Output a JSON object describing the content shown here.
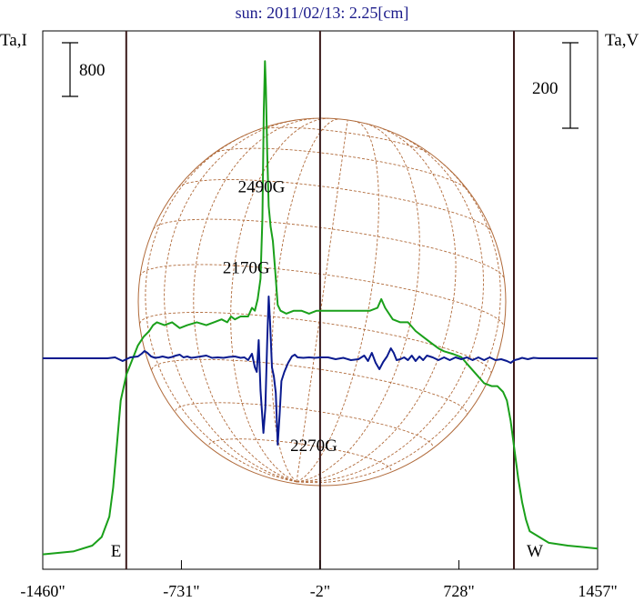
{
  "chart_data": {
    "type": "line",
    "title": "sun: 2011/02/13: 2.25[cm]",
    "ylabel_left": "Ta,I",
    "ylabel_right": "Ta,V",
    "scale_bar_left": "800",
    "scale_bar_right": "200",
    "xlim": [
      -1460,
      1457
    ],
    "x_ticks": [
      {
        "value": -1460,
        "label": "-1460\""
      },
      {
        "value": -731,
        "label": "-731\""
      },
      {
        "value": -2,
        "label": "-2\""
      },
      {
        "value": 728,
        "label": "728\""
      },
      {
        "value": 1457,
        "label": "1457\""
      }
    ],
    "limb_markers": [
      {
        "value": -1021,
        "label": "E"
      },
      {
        "value": 1017,
        "label": "W"
      }
    ],
    "center_line": -2,
    "annotations": [
      {
        "text": "2490G",
        "x": -310,
        "y_level": 0.3
      },
      {
        "text": "2170G",
        "x": -390,
        "y_level": 0.45
      },
      {
        "text": "2270G",
        "x": -35,
        "y_level": 0.78
      }
    ],
    "grid": "heliographic-coordinate grid",
    "colors": {
      "stokes_i": "#1aa01a",
      "stokes_v": "#0a1a8f",
      "disk": "#b06a3a",
      "vlines": "#3a1a1a"
    },
    "series": [
      {
        "key": "stokes_i",
        "points": [
          [
            -1460,
            0.02
          ],
          [
            -1300,
            0.03
          ],
          [
            -1200,
            0.05
          ],
          [
            -1150,
            0.08
          ],
          [
            -1110,
            0.15
          ],
          [
            -1090,
            0.25
          ],
          [
            -1070,
            0.4
          ],
          [
            -1050,
            0.55
          ],
          [
            -1020,
            0.64
          ],
          [
            -990,
            0.69
          ],
          [
            -960,
            0.74
          ],
          [
            -930,
            0.77
          ],
          [
            -900,
            0.79
          ],
          [
            -880,
            0.81
          ],
          [
            -860,
            0.82
          ],
          [
            -820,
            0.81
          ],
          [
            -780,
            0.82
          ],
          [
            -740,
            0.8
          ],
          [
            -700,
            0.81
          ],
          [
            -650,
            0.82
          ],
          [
            -600,
            0.81
          ],
          [
            -560,
            0.82
          ],
          [
            -520,
            0.83
          ],
          [
            -490,
            0.82
          ],
          [
            -470,
            0.84
          ],
          [
            -450,
            0.83
          ],
          [
            -420,
            0.84
          ],
          [
            -380,
            0.84
          ],
          [
            -360,
            0.87
          ],
          [
            -345,
            0.86
          ],
          [
            -330,
            0.9
          ],
          [
            -315,
            0.97
          ],
          [
            -305,
            1.18
          ],
          [
            -298,
            1.55
          ],
          [
            -292,
            1.72
          ],
          [
            -287,
            1.63
          ],
          [
            -280,
            1.4
          ],
          [
            -272,
            1.22
          ],
          [
            -262,
            1.15
          ],
          [
            -250,
            1.1
          ],
          [
            -238,
            1.0
          ],
          [
            -225,
            0.88
          ],
          [
            -210,
            0.86
          ],
          [
            -180,
            0.85
          ],
          [
            -140,
            0.86
          ],
          [
            -100,
            0.86
          ],
          [
            -60,
            0.85
          ],
          [
            -20,
            0.86
          ],
          [
            20,
            0.86
          ],
          [
            60,
            0.86
          ],
          [
            100,
            0.86
          ],
          [
            140,
            0.86
          ],
          [
            180,
            0.86
          ],
          [
            220,
            0.86
          ],
          [
            260,
            0.86
          ],
          [
            300,
            0.87
          ],
          [
            320,
            0.9
          ],
          [
            340,
            0.87
          ],
          [
            380,
            0.83
          ],
          [
            420,
            0.82
          ],
          [
            460,
            0.82
          ],
          [
            500,
            0.79
          ],
          [
            540,
            0.77
          ],
          [
            580,
            0.75
          ],
          [
            620,
            0.73
          ],
          [
            650,
            0.72
          ],
          [
            700,
            0.71
          ],
          [
            740,
            0.7
          ],
          [
            780,
            0.67
          ],
          [
            820,
            0.64
          ],
          [
            860,
            0.61
          ],
          [
            900,
            0.6
          ],
          [
            930,
            0.6
          ],
          [
            960,
            0.58
          ],
          [
            980,
            0.55
          ],
          [
            1000,
            0.48
          ],
          [
            1020,
            0.38
          ],
          [
            1040,
            0.28
          ],
          [
            1060,
            0.2
          ],
          [
            1080,
            0.14
          ],
          [
            1100,
            0.1
          ],
          [
            1150,
            0.08
          ],
          [
            1200,
            0.06
          ],
          [
            1300,
            0.05
          ],
          [
            1457,
            0.04
          ]
        ]
      },
      {
        "key": "stokes_v",
        "points": [
          [
            -1460,
            0
          ],
          [
            -1400,
            0
          ],
          [
            -1300,
            0
          ],
          [
            -1200,
            0
          ],
          [
            -1120,
            0
          ],
          [
            -1100,
            0.005
          ],
          [
            -1080,
            0.01
          ],
          [
            -1060,
            -0.01
          ],
          [
            -1040,
            -0.03
          ],
          [
            -1020,
            -0.01
          ],
          [
            -1000,
            0.01
          ],
          [
            -980,
            0.015
          ],
          [
            -960,
            0.02
          ],
          [
            -940,
            0.05
          ],
          [
            -925,
            0.08
          ],
          [
            -910,
            0.06
          ],
          [
            -890,
            0.02
          ],
          [
            -870,
            0.005
          ],
          [
            -850,
            0.01
          ],
          [
            -830,
            0.02
          ],
          [
            -800,
            0.005
          ],
          [
            -780,
            0.015
          ],
          [
            -760,
            0.03
          ],
          [
            -740,
            0.04
          ],
          [
            -720,
            0.01
          ],
          [
            -700,
            0.02
          ],
          [
            -680,
            0.005
          ],
          [
            -660,
            0.01
          ],
          [
            -630,
            0.02
          ],
          [
            -600,
            0.03
          ],
          [
            -570,
            0.005
          ],
          [
            -540,
            0.01
          ],
          [
            -510,
            0.005
          ],
          [
            -480,
            0.015
          ],
          [
            -450,
            0.02
          ],
          [
            -420,
            0.005
          ],
          [
            -400,
            0.01
          ],
          [
            -380,
            -0.02
          ],
          [
            -360,
            0.05
          ],
          [
            -345,
            -0.1
          ],
          [
            -335,
            -0.15
          ],
          [
            -325,
            0.2
          ],
          [
            -315,
            -0.35
          ],
          [
            -300,
            -0.82
          ],
          [
            -290,
            -0.55
          ],
          [
            -280,
            0.2
          ],
          [
            -272,
            0.68
          ],
          [
            -265,
            0.4
          ],
          [
            -255,
            -0.1
          ],
          [
            -245,
            -0.2
          ],
          [
            -235,
            -0.38
          ],
          [
            -225,
            -0.95
          ],
          [
            -215,
            -0.62
          ],
          [
            -205,
            -0.25
          ],
          [
            -190,
            -0.15
          ],
          [
            -170,
            -0.05
          ],
          [
            -150,
            0.02
          ],
          [
            -135,
            0.04
          ],
          [
            -120,
            0.01
          ],
          [
            -90,
            0.005
          ],
          [
            -60,
            0.01
          ],
          [
            -30,
            0.005
          ],
          [
            0,
            0.01
          ],
          [
            40,
            0.01
          ],
          [
            80,
            -0.01
          ],
          [
            120,
            0.005
          ],
          [
            160,
            -0.02
          ],
          [
            200,
            -0.01
          ],
          [
            230,
            0.03
          ],
          [
            250,
            -0.03
          ],
          [
            270,
            0.06
          ],
          [
            290,
            -0.05
          ],
          [
            310,
            -0.12
          ],
          [
            330,
            -0.04
          ],
          [
            350,
            0.02
          ],
          [
            370,
            0.11
          ],
          [
            385,
            0.06
          ],
          [
            400,
            -0.02
          ],
          [
            420,
            -0.01
          ],
          [
            440,
            0.01
          ],
          [
            460,
            -0.02
          ],
          [
            480,
            0.03
          ],
          [
            500,
            -0.03
          ],
          [
            520,
            0.02
          ],
          [
            540,
            -0.02
          ],
          [
            560,
            0.03
          ],
          [
            590,
            0.01
          ],
          [
            620,
            -0.02
          ],
          [
            650,
            0.01
          ],
          [
            680,
            -0.02
          ],
          [
            710,
            0.01
          ],
          [
            740,
            -0.01
          ],
          [
            770,
            0.01
          ],
          [
            800,
            -0.02
          ],
          [
            830,
            0.01
          ],
          [
            860,
            -0.02
          ],
          [
            890,
            0.01
          ],
          [
            920,
            -0.02
          ],
          [
            950,
            -0.01
          ],
          [
            980,
            -0.03
          ],
          [
            1000,
            -0.05
          ],
          [
            1020,
            -0.02
          ],
          [
            1040,
            -0.01
          ],
          [
            1060,
            0.005
          ],
          [
            1090,
            -0.01
          ],
          [
            1120,
            0.005
          ],
          [
            1150,
            0
          ],
          [
            1200,
            0
          ],
          [
            1300,
            0
          ],
          [
            1457,
            0
          ]
        ]
      }
    ]
  }
}
